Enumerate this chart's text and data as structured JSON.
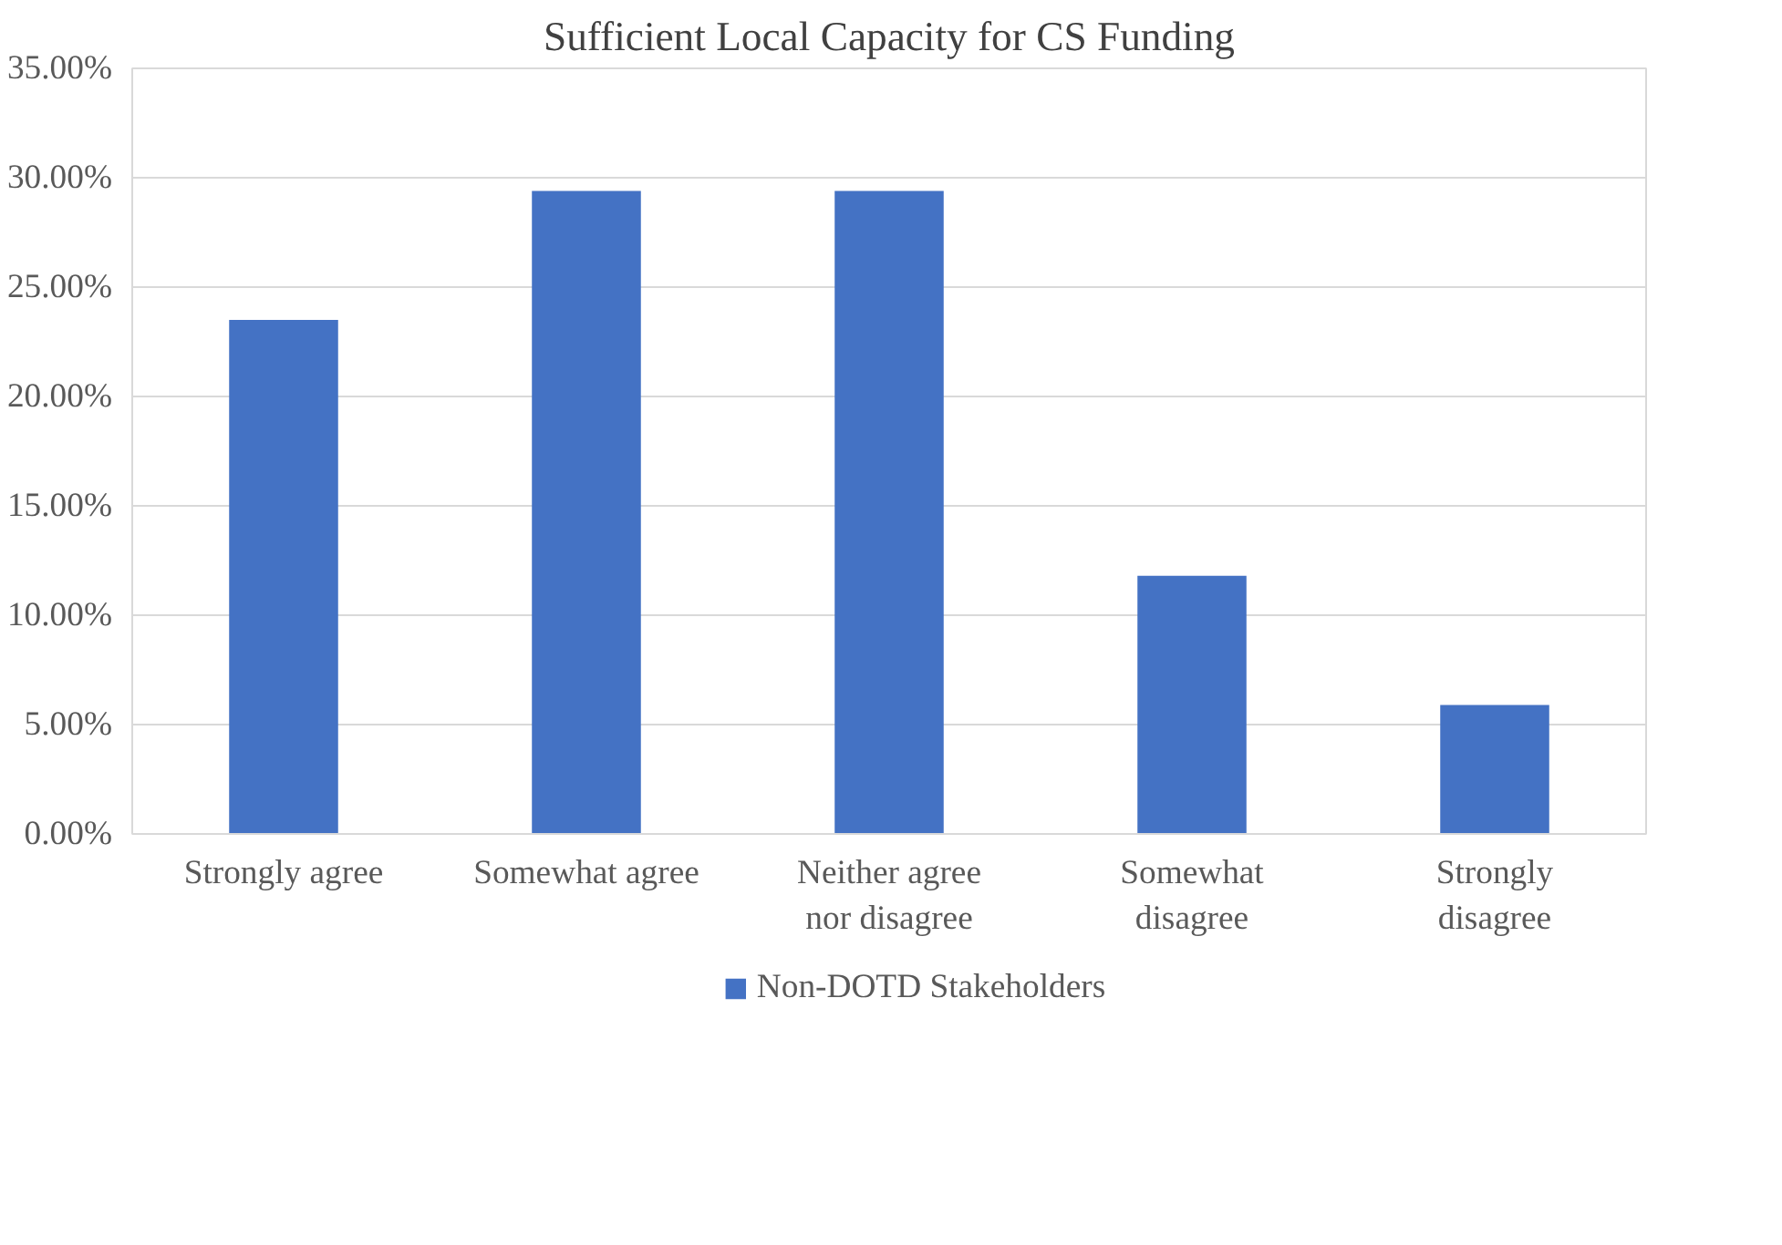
{
  "chart_data": {
    "type": "bar",
    "title": "Sufficient Local Capacity for CS Funding",
    "categories": [
      "Strongly agree",
      "Somewhat agree",
      "Neither agree nor disagree",
      "Somewhat disagree",
      "Strongly disagree"
    ],
    "series": [
      {
        "name": "Non-DOTD Stakeholders",
        "color": "#4472c4",
        "values": [
          23.5,
          29.4,
          29.4,
          11.8,
          5.9
        ]
      }
    ],
    "ylim": [
      0,
      35
    ],
    "yticks": [
      {
        "value": 0,
        "label": "0.00%"
      },
      {
        "value": 5,
        "label": "5.00%"
      },
      {
        "value": 10,
        "label": "10.00%"
      },
      {
        "value": 15,
        "label": "15.00%"
      },
      {
        "value": 20,
        "label": "20.00%"
      },
      {
        "value": 25,
        "label": "25.00%"
      },
      {
        "value": 30,
        "label": "30.00%"
      },
      {
        "value": 35,
        "label": "35.00%"
      }
    ],
    "grid": "y",
    "legend": "bottom"
  }
}
